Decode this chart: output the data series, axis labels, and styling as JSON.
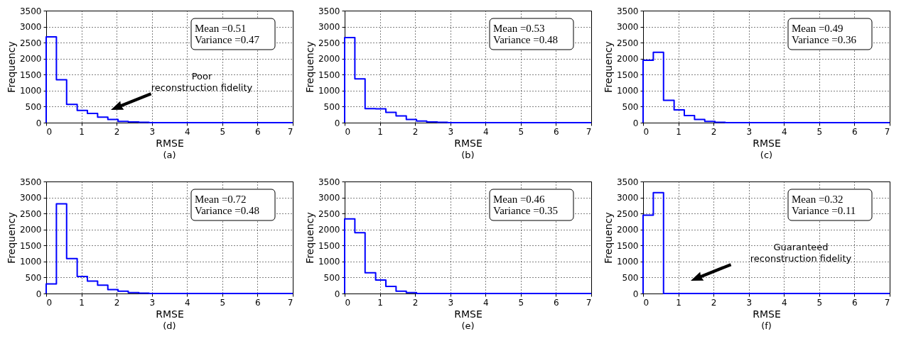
{
  "chart_data": [
    {
      "type": "histogram",
      "title": "(a)",
      "xlabel": "RMSE",
      "ylabel": "Frequency",
      "color": "#0000ff",
      "grid": true,
      "xlim": [
        0,
        7
      ],
      "ylim": [
        0,
        3500
      ],
      "xticks": [
        0,
        1,
        2,
        3,
        4,
        5,
        6,
        7
      ],
      "yticks": [
        0,
        500,
        1000,
        1500,
        2000,
        2500,
        3000,
        3500
      ],
      "bins": [
        0,
        0.29,
        0.58,
        0.88,
        1.17,
        1.46,
        1.75,
        2.04,
        2.33,
        2.63,
        2.92,
        3.21,
        3.5,
        3.79,
        4.08,
        4.38,
        4.67,
        4.96,
        5.25,
        5.54,
        5.83,
        6.13,
        6.42,
        6.71,
        7
      ],
      "values": [
        2680,
        1340,
        570,
        380,
        290,
        170,
        100,
        40,
        20,
        10,
        0,
        0,
        0,
        0,
        0,
        0,
        0,
        0,
        0,
        0,
        0,
        0,
        0,
        0
      ],
      "annotations": [
        "Mean =0.51",
        "Variance =0.47",
        "Poor\nreconstruction fidelity"
      ]
    },
    {
      "type": "histogram",
      "title": "(b)",
      "xlabel": "RMSE",
      "ylabel": "Frequency",
      "color": "#0000ff",
      "grid": true,
      "xlim": [
        0,
        7
      ],
      "ylim": [
        0,
        3500
      ],
      "xticks": [
        0,
        1,
        2,
        3,
        4,
        5,
        6,
        7
      ],
      "yticks": [
        0,
        500,
        1000,
        1500,
        2000,
        2500,
        3000,
        3500
      ],
      "bins": [
        0,
        0.29,
        0.58,
        0.88,
        1.17,
        1.46,
        1.75,
        2.04,
        2.33,
        2.63,
        2.92,
        3.21,
        3.5,
        3.79,
        4.08,
        4.38,
        4.67,
        4.96,
        5.25,
        5.54,
        5.83,
        6.13,
        6.42,
        6.71,
        7
      ],
      "values": [
        2660,
        1370,
        440,
        430,
        320,
        210,
        100,
        50,
        20,
        10,
        0,
        0,
        0,
        0,
        0,
        0,
        0,
        0,
        0,
        0,
        0,
        0,
        0,
        0
      ],
      "annotations": [
        "Mean =0.53",
        "Variance =0.48"
      ]
    },
    {
      "type": "histogram",
      "title": "(c)",
      "xlabel": "RMSE",
      "ylabel": "Frequency",
      "color": "#0000ff",
      "grid": true,
      "xlim": [
        0,
        7
      ],
      "ylim": [
        0,
        3500
      ],
      "xticks": [
        0,
        1,
        2,
        3,
        4,
        5,
        6,
        7
      ],
      "yticks": [
        0,
        500,
        1000,
        1500,
        2000,
        2500,
        3000,
        3500
      ],
      "bins": [
        0,
        0.29,
        0.58,
        0.88,
        1.17,
        1.46,
        1.75,
        2.04,
        2.33,
        2.63,
        2.92,
        3.21,
        3.5,
        3.79,
        4.08,
        4.38,
        4.67,
        4.96,
        5.25,
        5.54,
        5.83,
        6.13,
        6.42,
        6.71,
        7
      ],
      "values": [
        1950,
        2200,
        700,
        400,
        220,
        100,
        40,
        10,
        0,
        0,
        0,
        0,
        0,
        0,
        0,
        0,
        0,
        0,
        0,
        0,
        0,
        0,
        0,
        0
      ],
      "annotations": [
        "Mean =0.49",
        "Variance =0.36"
      ]
    },
    {
      "type": "histogram",
      "title": "(d)",
      "xlabel": "RMSE",
      "ylabel": "Frequency",
      "color": "#0000ff",
      "grid": true,
      "xlim": [
        0,
        7
      ],
      "ylim": [
        0,
        3500
      ],
      "xticks": [
        0,
        1,
        2,
        3,
        4,
        5,
        6,
        7
      ],
      "yticks": [
        0,
        500,
        1000,
        1500,
        2000,
        2500,
        3000,
        3500
      ],
      "bins": [
        0,
        0.29,
        0.58,
        0.88,
        1.17,
        1.46,
        1.75,
        2.04,
        2.33,
        2.63,
        2.92,
        3.21,
        3.5,
        3.79,
        4.08,
        4.38,
        4.67,
        4.96,
        5.25,
        5.54,
        5.83,
        6.13,
        6.42,
        6.71,
        7
      ],
      "values": [
        300,
        2800,
        1090,
        530,
        390,
        260,
        120,
        70,
        30,
        10,
        0,
        0,
        0,
        0,
        0,
        0,
        0,
        0,
        0,
        0,
        0,
        0,
        0,
        0
      ],
      "annotations": [
        "Mean =0.72",
        "Variance =0.48"
      ]
    },
    {
      "type": "histogram",
      "title": "(e)",
      "xlabel": "RMSE",
      "ylabel": "Frequency",
      "color": "#0000ff",
      "grid": true,
      "xlim": [
        0,
        7
      ],
      "ylim": [
        0,
        3500
      ],
      "xticks": [
        0,
        1,
        2,
        3,
        4,
        5,
        6,
        7
      ],
      "yticks": [
        0,
        500,
        1000,
        1500,
        2000,
        2500,
        3000,
        3500
      ],
      "bins": [
        0,
        0.29,
        0.58,
        0.88,
        1.17,
        1.46,
        1.75,
        2.04,
        2.33,
        2.63,
        2.92,
        3.21,
        3.5,
        3.79,
        4.08,
        4.38,
        4.67,
        4.96,
        5.25,
        5.54,
        5.83,
        6.13,
        6.42,
        6.71,
        7
      ],
      "values": [
        2330,
        1900,
        650,
        420,
        220,
        70,
        30,
        0,
        0,
        0,
        0,
        0,
        0,
        0,
        0,
        0,
        0,
        0,
        0,
        0,
        0,
        0,
        0,
        0
      ],
      "annotations": [
        "Mean =0.46",
        "Variance =0.35"
      ]
    },
    {
      "type": "histogram",
      "title": "(f)",
      "xlabel": "RMSE",
      "ylabel": "Frequency",
      "color": "#0000ff",
      "grid": true,
      "xlim": [
        0,
        7
      ],
      "ylim": [
        0,
        3500
      ],
      "xticks": [
        0,
        1,
        2,
        3,
        4,
        5,
        6,
        7
      ],
      "yticks": [
        0,
        500,
        1000,
        1500,
        2000,
        2500,
        3000,
        3500
      ],
      "bins": [
        0,
        0.29,
        0.58,
        0.88,
        1.17,
        1.46,
        1.75,
        2.04,
        2.33,
        2.63,
        2.92,
        3.21,
        3.5,
        3.79,
        4.08,
        4.38,
        4.67,
        4.96,
        5.25,
        5.54,
        5.83,
        6.13,
        6.42,
        6.71,
        7
      ],
      "values": [
        2450,
        3150,
        0,
        0,
        0,
        0,
        0,
        0,
        0,
        0,
        0,
        0,
        0,
        0,
        0,
        0,
        0,
        0,
        0,
        0,
        0,
        0,
        0,
        0
      ],
      "annotations": [
        "Mean =0.32",
        "Variance =0.11",
        "Guaranteed\nreconstruction fidelity"
      ]
    }
  ]
}
